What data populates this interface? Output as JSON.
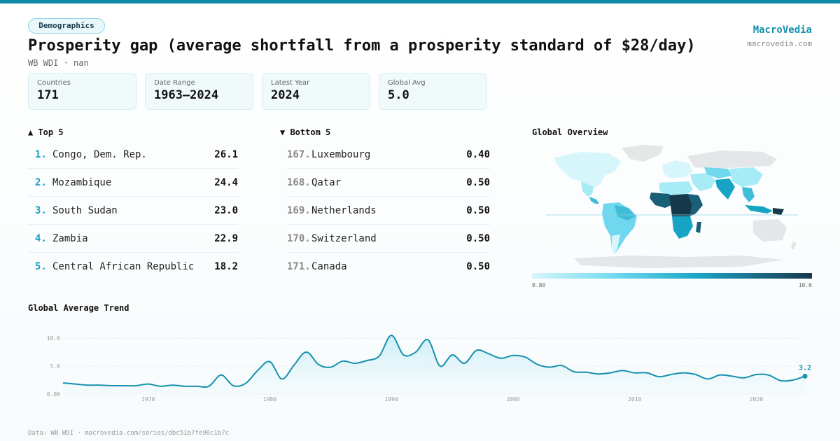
{
  "category_tag": "Demographics",
  "title": "Prosperity gap (average shortfall from a prosperity standard of $28/day)",
  "subtitle": "WB WDI · nan",
  "brand": {
    "name": "MacroVedia",
    "url": "macrovedia.com"
  },
  "stats": [
    {
      "label": "Countries",
      "value": "171"
    },
    {
      "label": "Date Range",
      "value": "1963–2024"
    },
    {
      "label": "Latest Year",
      "value": "2024"
    },
    {
      "label": "Global Avg",
      "value": "5.0"
    }
  ],
  "top5": {
    "heading": "▲ Top 5",
    "items": [
      {
        "rank": "1.",
        "name": "Congo, Dem. Rep.",
        "value": "26.1"
      },
      {
        "rank": "2.",
        "name": "Mozambique",
        "value": "24.4"
      },
      {
        "rank": "3.",
        "name": "South Sudan",
        "value": "23.0"
      },
      {
        "rank": "4.",
        "name": "Zambia",
        "value": "22.9"
      },
      {
        "rank": "5.",
        "name": "Central African Republic",
        "value": "18.2"
      }
    ]
  },
  "bottom5": {
    "heading": "▼ Bottom 5",
    "items": [
      {
        "rank": "167.",
        "name": "Luxembourg",
        "value": "0.40"
      },
      {
        "rank": "168.",
        "name": "Qatar",
        "value": "0.50"
      },
      {
        "rank": "169.",
        "name": "Netherlands",
        "value": "0.50"
      },
      {
        "rank": "170.",
        "name": "Switzerland",
        "value": "0.50"
      },
      {
        "rank": "171.",
        "name": "Canada",
        "value": "0.50"
      }
    ]
  },
  "map": {
    "heading": "Global Overview",
    "legend_min": "0.80",
    "legend_max": "10.6",
    "colors": {
      "low": "#d7f6fb",
      "mid": "#17a4c4",
      "high": "#16384b",
      "nodata": "#e4e6e8"
    }
  },
  "trend": {
    "heading": "Global Average Trend",
    "last_label": "3.2",
    "line_color": "#1590b0"
  },
  "chart_data": {
    "type": "area",
    "title": "Global Average Trend",
    "xlabel": "",
    "ylabel": "",
    "ylim": [
      0,
      12
    ],
    "y_ticks": [
      "0.00",
      "5.0",
      "10.0"
    ],
    "x_ticks": [
      "1970",
      "1980",
      "1990",
      "2000",
      "2010",
      "2020"
    ],
    "x_tick_values": [
      1970,
      1980,
      1990,
      2000,
      2010,
      2020
    ],
    "x_range": [
      1963,
      2024
    ],
    "x": [
      1963,
      1964,
      1965,
      1966,
      1967,
      1968,
      1969,
      1970,
      1971,
      1972,
      1973,
      1974,
      1975,
      1976,
      1977,
      1978,
      1979,
      1980,
      1981,
      1982,
      1983,
      1984,
      1985,
      1986,
      1987,
      1988,
      1989,
      1990,
      1991,
      1992,
      1993,
      1994,
      1995,
      1996,
      1997,
      1998,
      1999,
      2000,
      2001,
      2002,
      2003,
      2004,
      2005,
      2006,
      2007,
      2008,
      2009,
      2010,
      2011,
      2012,
      2013,
      2014,
      2015,
      2016,
      2017,
      2018,
      2019,
      2020,
      2021,
      2022,
      2023,
      2024
    ],
    "values": [
      2.0,
      1.8,
      1.6,
      1.6,
      1.5,
      1.5,
      1.5,
      1.8,
      1.4,
      1.6,
      1.4,
      1.4,
      1.4,
      3.4,
      1.5,
      1.9,
      4.2,
      5.8,
      2.7,
      5.2,
      7.5,
      5.3,
      4.8,
      5.9,
      5.5,
      6.0,
      6.8,
      10.5,
      7.0,
      7.5,
      9.7,
      5.0,
      7.0,
      5.5,
      7.8,
      7.2,
      6.4,
      6.9,
      6.6,
      5.3,
      4.8,
      5.1,
      4.0,
      3.9,
      3.6,
      3.8,
      4.2,
      3.8,
      3.8,
      3.1,
      3.5,
      3.8,
      3.5,
      2.7,
      3.4,
      3.2,
      2.9,
      3.5,
      3.4,
      2.4,
      2.5,
      3.2
    ],
    "last_value_label": "3.2"
  },
  "footer": "Data: WB WDI · macrovedia.com/series/dbc51b7fe96c1b7c"
}
